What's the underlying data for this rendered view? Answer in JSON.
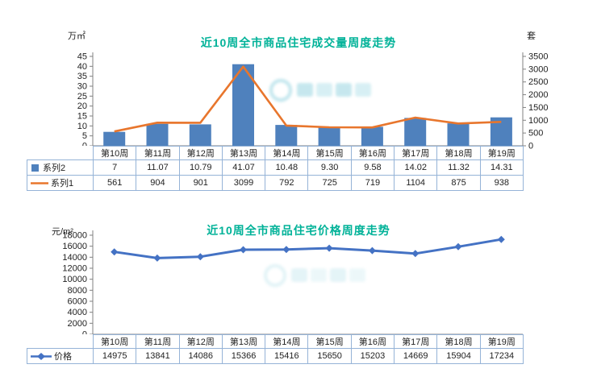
{
  "page": {
    "background": "#ffffff",
    "title_color": "#00b298",
    "table_border_color": "#95b3d7"
  },
  "watermark": {
    "color": "#45b3c9"
  },
  "chart_data": [
    {
      "type": "bar+line",
      "title": "近10周全市商品住宅成交量周度走势",
      "left_axis": {
        "label": "万㎡",
        "max": 45,
        "step": 5,
        "ticks": [
          "0",
          "5",
          "10",
          "15",
          "20",
          "25",
          "30",
          "35",
          "40",
          "45"
        ]
      },
      "right_axis": {
        "label": "套",
        "max": 3500,
        "step": 500,
        "ticks": [
          "0",
          "500",
          "1000",
          "1500",
          "2000",
          "2500",
          "3000",
          "3500"
        ]
      },
      "categories": [
        "第10周",
        "第11周",
        "第12周",
        "第13周",
        "第14周",
        "第15周",
        "第16周",
        "第17周",
        "第18周",
        "第19周"
      ],
      "series": [
        {
          "name": "系列2",
          "kind": "bar",
          "axis": "left",
          "color": "#4f81bd",
          "values": [
            7,
            11.07,
            10.79,
            41.07,
            10.48,
            9.3,
            9.58,
            14.02,
            11.32,
            14.31
          ],
          "labels": [
            "7",
            "11.07",
            "10.79",
            "41.07",
            "10.48",
            "9.30",
            "9.58",
            "14.02",
            "11.32",
            "14.31"
          ]
        },
        {
          "name": "系列1",
          "kind": "line",
          "axis": "right",
          "color": "#e8762d",
          "values": [
            561,
            904,
            901,
            3099,
            792,
            725,
            719,
            1104,
            875,
            938
          ],
          "labels": [
            "561",
            "904",
            "901",
            "3099",
            "792",
            "725",
            "719",
            "1104",
            "875",
            "938"
          ]
        }
      ],
      "grid": false,
      "legend_position": "table-left"
    },
    {
      "type": "line",
      "title": "近10周全市商品住宅价格周度走势",
      "left_axis": {
        "label": "元/m²",
        "max": 18000,
        "step": 2000,
        "ticks": [
          "0",
          "2000",
          "4000",
          "6000",
          "8000",
          "10000",
          "12000",
          "14000",
          "16000",
          "18000"
        ]
      },
      "categories": [
        "第10周",
        "第11周",
        "第12周",
        "第13周",
        "第14周",
        "第15周",
        "第16周",
        "第17周",
        "第18周",
        "第19周"
      ],
      "series": [
        {
          "name": "价格",
          "kind": "line-diamond",
          "axis": "left",
          "color": "#4472c4",
          "values": [
            14975,
            13841,
            14086,
            15366,
            15416,
            15650,
            15203,
            14669,
            15904,
            17234
          ],
          "labels": [
            "14975",
            "13841",
            "14086",
            "15366",
            "15416",
            "15650",
            "15203",
            "14669",
            "15904",
            "17234"
          ]
        }
      ],
      "grid": false,
      "legend_position": "table-left"
    }
  ]
}
